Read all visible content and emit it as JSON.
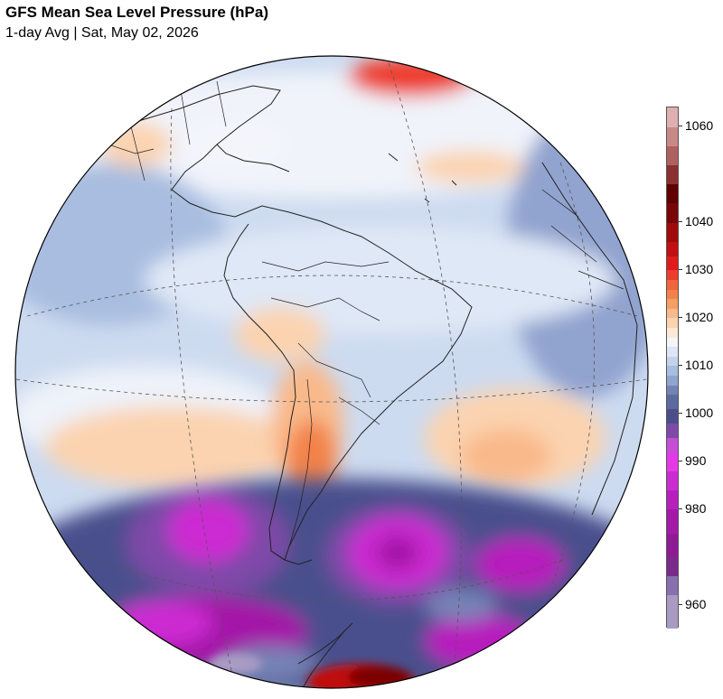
{
  "header": {
    "title": "GFS Mean Sea Level Pressure (hPa)",
    "subtitle": "1-day Avg | Sat, May 02, 2026"
  },
  "map": {
    "projection": "orthographic",
    "variable": "Mean Sea Level Pressure",
    "units": "hPa",
    "features": [
      "coastlines",
      "country borders",
      "state borders",
      "graticule (dashed)"
    ],
    "pressure_regions": [
      {
        "region": "Southern Ocean south of Cape Horn",
        "level": "low",
        "approx_hPa": 985
      },
      {
        "region": "South Pacific west of Chile",
        "level": "low",
        "approx_hPa": 988
      },
      {
        "region": "Weddell / Bellingshausen Sea",
        "level": "low",
        "approx_hPa": 975
      },
      {
        "region": "Antarctic interior",
        "level": "high",
        "approx_hPa": 1035
      },
      {
        "region": "North Atlantic (Greenland)",
        "level": "high",
        "approx_hPa": 1032
      },
      {
        "region": "Argentina (Patagonia)",
        "level": "high",
        "approx_hPa": 1022
      },
      {
        "region": "South Atlantic subtropical",
        "level": "high",
        "approx_hPa": 1020
      },
      {
        "region": "South Pacific subtropical",
        "level": "high",
        "approx_hPa": 1020
      }
    ]
  },
  "colorbar": {
    "min": 955,
    "max": 1064,
    "tick_labels": [
      "1060",
      "1040",
      "1030",
      "1020",
      "1010",
      "1000",
      "990",
      "980",
      "960"
    ],
    "tick_values": [
      1060,
      1040,
      1030,
      1020,
      1010,
      1000,
      990,
      980,
      960
    ],
    "colors": [
      {
        "from": 955,
        "to": 962,
        "color": "#a99bc4"
      },
      {
        "from": 962,
        "to": 966,
        "color": "#8a6fae"
      },
      {
        "from": 966,
        "to": 970,
        "color": "#7b2a8c"
      },
      {
        "from": 970,
        "to": 975,
        "color": "#8f1a96"
      },
      {
        "from": 975,
        "to": 980,
        "color": "#a419a8"
      },
      {
        "from": 980,
        "to": 984,
        "color": "#b71fbd"
      },
      {
        "from": 984,
        "to": 988,
        "color": "#cc2bd2"
      },
      {
        "from": 988,
        "to": 992,
        "color": "#e23ae7"
      },
      {
        "from": 992,
        "to": 995,
        "color": "#c64dd6"
      },
      {
        "from": 995,
        "to": 998,
        "color": "#7e4aa8"
      },
      {
        "from": 998,
        "to": 1001,
        "color": "#4a4f8c"
      },
      {
        "from": 1001,
        "to": 1004,
        "color": "#5e6a9f"
      },
      {
        "from": 1004,
        "to": 1006,
        "color": "#7483b5"
      },
      {
        "from": 1006,
        "to": 1008,
        "color": "#91a3cf"
      },
      {
        "from": 1008,
        "to": 1010,
        "color": "#a9bde0"
      },
      {
        "from": 1010,
        "to": 1012,
        "color": "#c4d3ec"
      },
      {
        "from": 1012,
        "to": 1014,
        "color": "#dde6f5"
      },
      {
        "from": 1014,
        "to": 1016,
        "color": "#f3f5fb"
      },
      {
        "from": 1016,
        "to": 1018,
        "color": "#fde9d6"
      },
      {
        "from": 1018,
        "to": 1020,
        "color": "#fbd3b0"
      },
      {
        "from": 1020,
        "to": 1022,
        "color": "#f9b98a"
      },
      {
        "from": 1022,
        "to": 1024,
        "color": "#f59e66"
      },
      {
        "from": 1024,
        "to": 1026,
        "color": "#f3824a"
      },
      {
        "from": 1026,
        "to": 1028,
        "color": "#f0653a"
      },
      {
        "from": 1028,
        "to": 1030,
        "color": "#ee3d2d"
      },
      {
        "from": 1030,
        "to": 1033,
        "color": "#e01b1b"
      },
      {
        "from": 1033,
        "to": 1036,
        "color": "#c01010"
      },
      {
        "from": 1036,
        "to": 1040,
        "color": "#a00a0a"
      },
      {
        "from": 1040,
        "to": 1044,
        "color": "#7a0505"
      },
      {
        "from": 1044,
        "to": 1048,
        "color": "#600000"
      },
      {
        "from": 1048,
        "to": 1052,
        "color": "#8a3030"
      },
      {
        "from": 1052,
        "to": 1056,
        "color": "#b06060"
      },
      {
        "from": 1056,
        "to": 1060,
        "color": "#c98888"
      },
      {
        "from": 1060,
        "to": 1064,
        "color": "#deb0b0"
      }
    ]
  }
}
